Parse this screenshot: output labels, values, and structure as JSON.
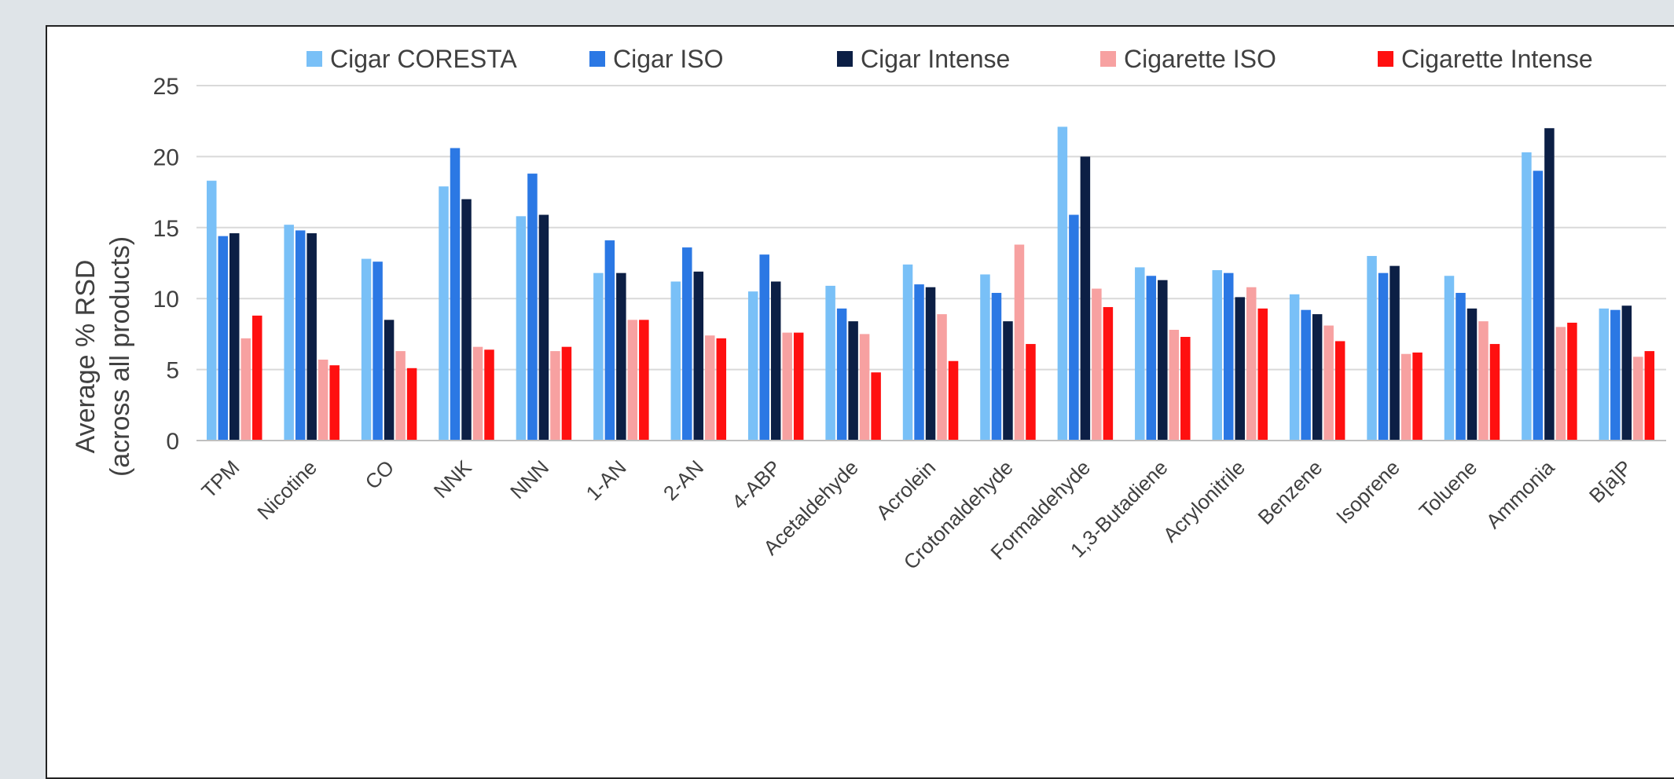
{
  "chart_data": {
    "type": "bar",
    "title": "",
    "xlabel": "",
    "ylabel": [
      "Average % RSD",
      "(across all products)"
    ],
    "ylim": [
      0,
      25
    ],
    "yticks": [
      0,
      5,
      10,
      15,
      20,
      25
    ],
    "grid": "horizontal",
    "legend_position": "top",
    "categories": [
      "TPM",
      "Nicotine",
      "CO",
      "NNK",
      "NNN",
      "1-AN",
      "2-AN",
      "4-ABP",
      "Acetaldehyde",
      "Acrolein",
      "Crotonaldehyde",
      "Formaldehyde",
      "1,3-Butadiene",
      "Acrylonitrile",
      "Benzene",
      "Isoprene",
      "Toluene",
      "Ammonia",
      "B[a]P"
    ],
    "series": [
      {
        "name": "Cigar CORESTA",
        "color": "#79c0f7",
        "values": [
          18.3,
          15.2,
          12.8,
          17.9,
          15.8,
          11.8,
          11.2,
          10.5,
          10.9,
          12.4,
          11.7,
          22.1,
          12.2,
          12.0,
          10.3,
          13.0,
          11.6,
          20.3,
          9.3
        ]
      },
      {
        "name": "Cigar ISO",
        "color": "#2b78e4",
        "values": [
          14.4,
          14.8,
          12.6,
          20.6,
          18.8,
          14.1,
          13.6,
          13.1,
          9.3,
          11.0,
          10.4,
          15.9,
          11.6,
          11.8,
          9.2,
          11.8,
          10.4,
          19.0,
          9.2
        ]
      },
      {
        "name": "Cigar Intense",
        "color": "#0c1f45",
        "values": [
          14.6,
          14.6,
          8.5,
          17.0,
          15.9,
          11.8,
          11.9,
          11.2,
          8.4,
          10.8,
          8.4,
          20.0,
          11.3,
          10.1,
          8.9,
          12.3,
          9.3,
          22.0,
          9.5
        ]
      },
      {
        "name": "Cigarette ISO",
        "color": "#f7a1a1",
        "values": [
          7.2,
          5.7,
          6.3,
          6.6,
          6.3,
          8.5,
          7.4,
          7.6,
          7.5,
          8.9,
          13.8,
          10.7,
          7.8,
          10.8,
          8.1,
          6.1,
          8.4,
          8.0,
          5.9
        ]
      },
      {
        "name": "Cigarette Intense",
        "color": "#ff1010",
        "values": [
          8.8,
          5.3,
          5.1,
          6.4,
          6.6,
          8.5,
          7.2,
          7.6,
          4.8,
          5.6,
          6.8,
          9.4,
          7.3,
          9.3,
          7.0,
          6.2,
          6.8,
          8.3,
          6.3
        ]
      }
    ]
  }
}
